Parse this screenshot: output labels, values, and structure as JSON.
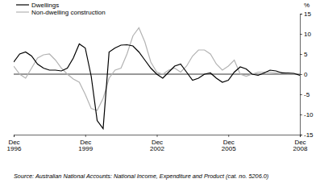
{
  "chart_data": {
    "type": "line",
    "y_label": "%",
    "source": "Source: Australian National Accounts: National Income, Expenditure and Product (cat. no. 5206.0)",
    "categories": [
      "Dec 1996",
      null,
      null,
      null,
      null,
      null,
      null,
      null,
      null,
      null,
      null,
      null,
      "Dec 1999",
      null,
      null,
      null,
      null,
      null,
      null,
      null,
      null,
      null,
      null,
      null,
      "Dec 2002",
      null,
      null,
      null,
      null,
      null,
      null,
      null,
      null,
      null,
      null,
      null,
      "Dec 2005",
      null,
      null,
      null,
      null,
      null,
      null,
      null,
      null,
      null,
      null,
      null,
      "Dec 2008"
    ],
    "series": [
      {
        "name": "Dwellings",
        "color": "#000000",
        "values": [
          3,
          5,
          5.5,
          4.5,
          2.5,
          1.5,
          1,
          1,
          0.8,
          1.5,
          4,
          7.5,
          6.5,
          -0.5,
          -11.5,
          -13.5,
          5.5,
          6.5,
          7.2,
          7.3,
          7,
          5.5,
          3.5,
          1.5,
          0,
          -1,
          0.5,
          2,
          2.5,
          0.5,
          -1.5,
          -1,
          0,
          0.3,
          -1,
          -2,
          -1.5,
          0.5,
          1.8,
          1.3,
          0,
          -0.3,
          0.3,
          1,
          0.8,
          0.3,
          0.3,
          0.2,
          -0.3
        ]
      },
      {
        "name": "Non-dwelling construction",
        "color": "#b3b3b3",
        "values": [
          2,
          0,
          -1,
          1.5,
          4,
          4.8,
          5,
          3.5,
          1.5,
          0,
          -1.2,
          -2,
          -5,
          -8.5,
          -9,
          -6,
          -1,
          1,
          1.5,
          5,
          9.5,
          11.5,
          8,
          3,
          0.5,
          0,
          1,
          1.5,
          0.5,
          2,
          4.5,
          6,
          6,
          5,
          2.5,
          1,
          2,
          3.5,
          0,
          -0.5,
          0,
          0.5,
          0.5,
          0.5,
          0.3,
          0.5,
          0.2,
          0,
          0
        ]
      }
    ],
    "ylim": [
      -15,
      15
    ],
    "yticks": [
      -15,
      -10,
      -5,
      0,
      5,
      10,
      15
    ],
    "grid": false,
    "legend": "top-left"
  }
}
